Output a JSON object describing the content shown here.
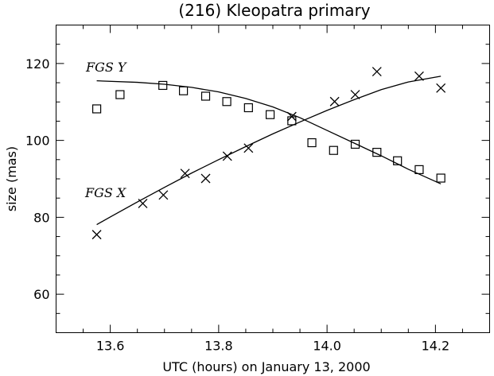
{
  "chart_data": {
    "type": "scatter",
    "title": "(216) Kleopatra primary",
    "xlabel": "UTC (hours) on January 13, 2000",
    "ylabel": "size (mas)",
    "xlim": [
      13.5,
      14.3
    ],
    "ylim": [
      50,
      130
    ],
    "x_ticks": [
      13.6,
      13.8,
      14.0,
      14.2
    ],
    "x_tick_labels": [
      "13.6",
      "13.8",
      "14.0",
      "14.2"
    ],
    "y_ticks": [
      60,
      80,
      100,
      120
    ],
    "y_tick_labels": [
      "60",
      "80",
      "100",
      "120"
    ],
    "grid": false,
    "annotations": [
      {
        "text": "FGS Y",
        "series": "FGS Y"
      },
      {
        "text": "FGS X",
        "series": "FGS X"
      }
    ],
    "series": [
      {
        "name": "FGS Y",
        "marker": "square",
        "points": [
          [
            13.575,
            108.2
          ],
          [
            13.618,
            111.9
          ],
          [
            13.697,
            114.3
          ],
          [
            13.735,
            112.9
          ],
          [
            13.776,
            111.5
          ],
          [
            13.815,
            110.1
          ],
          [
            13.855,
            108.5
          ],
          [
            13.895,
            106.7
          ],
          [
            13.935,
            105.1
          ],
          [
            13.972,
            99.4
          ],
          [
            14.012,
            97.4
          ],
          [
            14.052,
            99.0
          ],
          [
            14.092,
            96.9
          ],
          [
            14.13,
            94.7
          ],
          [
            14.17,
            92.4
          ],
          [
            14.21,
            90.2
          ]
        ],
        "fit": [
          [
            13.575,
            115.5
          ],
          [
            13.65,
            115.1
          ],
          [
            13.7,
            114.6
          ],
          [
            13.75,
            113.8
          ],
          [
            13.8,
            112.6
          ],
          [
            13.85,
            110.9
          ],
          [
            13.9,
            108.7
          ],
          [
            13.95,
            105.9
          ],
          [
            14.0,
            102.6
          ],
          [
            14.05,
            99.3
          ],
          [
            14.1,
            96.0
          ],
          [
            14.15,
            92.5
          ],
          [
            14.21,
            88.7
          ]
        ]
      },
      {
        "name": "FGS X",
        "marker": "cross",
        "points": [
          [
            13.575,
            75.5
          ],
          [
            13.66,
            83.6
          ],
          [
            13.698,
            85.8
          ],
          [
            13.738,
            91.4
          ],
          [
            13.776,
            90.1
          ],
          [
            13.816,
            95.9
          ],
          [
            13.855,
            98.0
          ],
          [
            13.935,
            106.2
          ],
          [
            14.014,
            110.1
          ],
          [
            14.052,
            111.9
          ],
          [
            14.092,
            117.9
          ],
          [
            14.17,
            116.7
          ],
          [
            14.21,
            113.6
          ]
        ],
        "fit": [
          [
            13.575,
            78.1
          ],
          [
            13.6,
            80.1
          ],
          [
            13.65,
            84.0
          ],
          [
            13.7,
            87.8
          ],
          [
            13.75,
            91.5
          ],
          [
            13.8,
            95.0
          ],
          [
            13.85,
            98.4
          ],
          [
            13.9,
            101.7
          ],
          [
            13.95,
            104.8
          ],
          [
            14.0,
            107.8
          ],
          [
            14.05,
            110.6
          ],
          [
            14.1,
            113.2
          ],
          [
            14.15,
            115.2
          ],
          [
            14.21,
            116.7
          ]
        ]
      }
    ]
  }
}
